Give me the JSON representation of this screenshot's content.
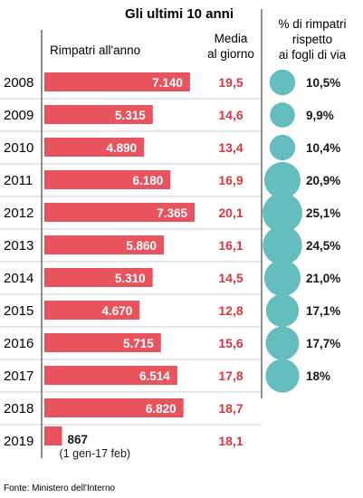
{
  "title": "Gli ultimi 10 anni",
  "headers": {
    "bars": "Rimpatri all'anno",
    "media_line1": "Media",
    "media_line2": "al giorno",
    "pct_line1": "% di rimpatri",
    "pct_line2": "rispetto",
    "pct_line3": "ai fogli di via"
  },
  "source": "Fonte: Ministero dell'Interno",
  "colors": {
    "bar": "#e8545e",
    "circle": "#66bdbd",
    "media_text": "#d7373f",
    "divider": "#222222",
    "row_line": "#cfcfcf"
  },
  "chart_data": {
    "type": "bar",
    "title": "Gli ultimi 10 anni",
    "categories": [
      "2008",
      "2009",
      "2010",
      "2011",
      "2012",
      "2013",
      "2014",
      "2015",
      "2016",
      "2017",
      "2018",
      "2019"
    ],
    "series": [
      {
        "name": "Rimpatri all'anno",
        "values": [
          7140,
          5315,
          4890,
          6180,
          7365,
          5860,
          5310,
          4670,
          5715,
          6514,
          6820,
          867
        ],
        "labels": [
          "7.140",
          "5.315",
          "4.890",
          "6.180",
          "7.365",
          "5.860",
          "5.310",
          "4.670",
          "5.715",
          "6.514",
          "6.820",
          "867"
        ]
      },
      {
        "name": "Media al giorno",
        "values": [
          19.5,
          14.6,
          13.4,
          16.9,
          20.1,
          16.1,
          14.5,
          12.8,
          15.6,
          17.8,
          18.7,
          18.1
        ],
        "labels": [
          "19,5",
          "14,6",
          "13,4",
          "16,9",
          "20,1",
          "16,1",
          "14,5",
          "12,8",
          "15,6",
          "17,8",
          "18,7",
          "18,1"
        ]
      },
      {
        "name": "% di rimpatri rispetto ai fogli di via",
        "values": [
          10.5,
          9.9,
          10.4,
          20.9,
          25.1,
          24.5,
          21.0,
          17.1,
          17.7,
          18,
          null,
          null
        ],
        "labels": [
          "10,5%",
          "9,9%",
          "10,4%",
          "20,9%",
          "25,1%",
          "24,5%",
          "21,0%",
          "17,1%",
          "17,7%",
          "18%",
          "",
          ""
        ]
      }
    ],
    "annotations": {
      "2019": "(1 gen-17 feb)"
    },
    "bar_max": 7365,
    "pct_max": 25.1
  }
}
